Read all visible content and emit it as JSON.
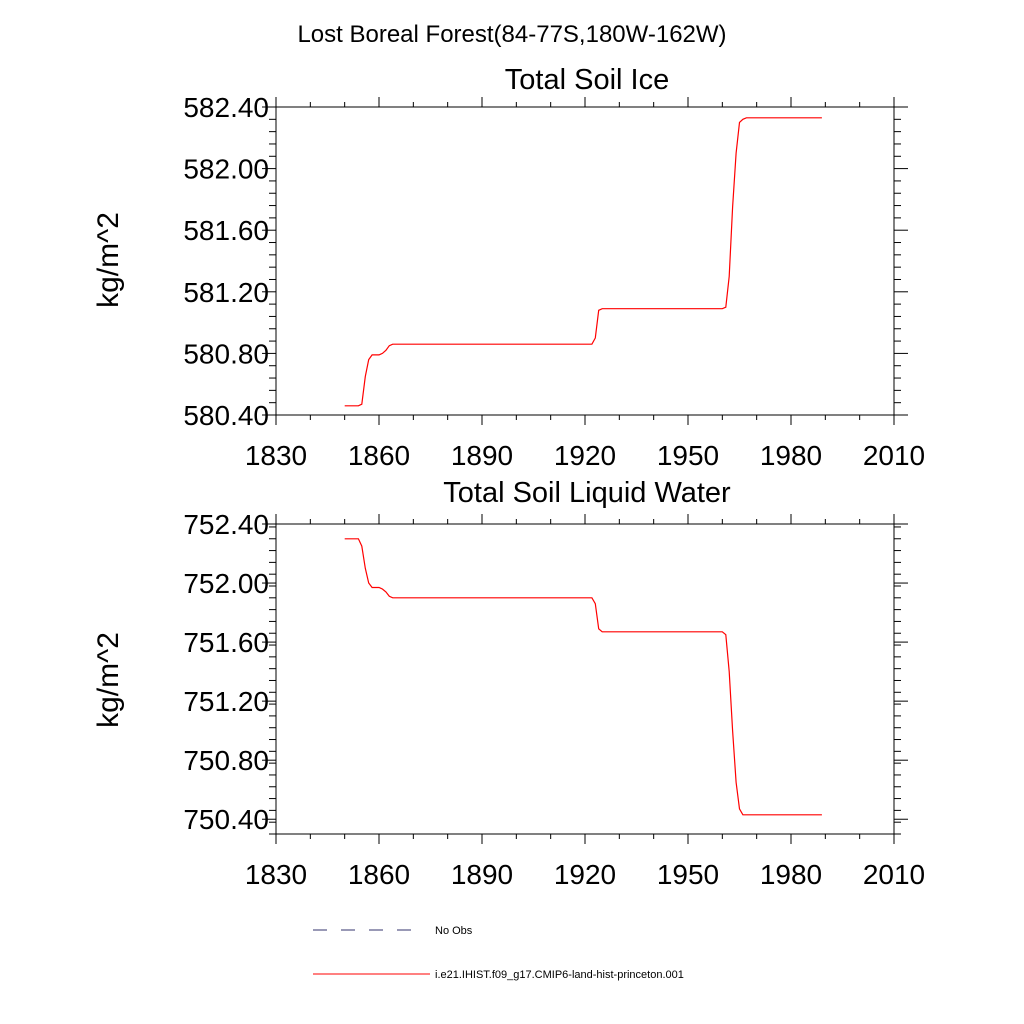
{
  "figure": {
    "title": "Lost Boreal Forest(84-77S,180W-162W)",
    "line_color": "#ff0000",
    "obs_color": "#33336e"
  },
  "legend": [
    {
      "label": "No Obs",
      "style": "dashed",
      "color": "#33336e"
    },
    {
      "label": "i.e21.IHIST.f09_g17.CMIP6-land-hist-princeton.001",
      "style": "solid",
      "color": "#ff0000"
    }
  ],
  "chart_data": [
    {
      "type": "line",
      "title": "Total Soil Ice",
      "xlabel": "",
      "ylabel": "kg/m^2",
      "xlim": [
        1830,
        2010
      ],
      "ylim": [
        580.4,
        582.4
      ],
      "xticks": [
        1830,
        1860,
        1890,
        1920,
        1950,
        1980,
        2010
      ],
      "xtick_labels": [
        "1830",
        "1860",
        "1890",
        "1920",
        "1950",
        "1980",
        "2010"
      ],
      "yticks": [
        580.4,
        580.8,
        581.2,
        581.6,
        582.0,
        582.4
      ],
      "ytick_labels": [
        "580.40",
        "580.80",
        "581.20",
        "581.60",
        "582.00",
        "582.40"
      ],
      "grid": false,
      "series": [
        {
          "name": "i.e21.IHIST.f09_g17.CMIP6-land-hist-princeton.001",
          "x": [
            1850,
            1854,
            1855,
            1856,
            1857,
            1858,
            1860,
            1861,
            1862,
            1863,
            1864,
            1880,
            1900,
            1922,
            1923,
            1924,
            1925,
            1930,
            1960,
            1961,
            1962,
            1963,
            1964,
            1965,
            1966,
            1967,
            1989
          ],
          "y": [
            580.46,
            580.46,
            580.47,
            580.65,
            580.76,
            580.79,
            580.79,
            580.8,
            580.82,
            580.85,
            580.86,
            580.86,
            580.86,
            580.86,
            580.9,
            581.08,
            581.09,
            581.09,
            581.09,
            581.1,
            581.3,
            581.75,
            582.1,
            582.3,
            582.32,
            582.33,
            582.33
          ]
        }
      ]
    },
    {
      "type": "line",
      "title": "Total Soil Liquid Water",
      "xlabel": "",
      "ylabel": "kg/m^2",
      "xlim": [
        1830,
        2010
      ],
      "ylim": [
        750.3,
        752.4
      ],
      "xticks": [
        1830,
        1860,
        1890,
        1920,
        1950,
        1980,
        2010
      ],
      "xtick_labels": [
        "1830",
        "1860",
        "1890",
        "1920",
        "1950",
        "1980",
        "2010"
      ],
      "yticks": [
        750.4,
        750.8,
        751.2,
        751.6,
        752.0,
        752.4
      ],
      "ytick_labels": [
        "750.40",
        "750.80",
        "751.20",
        "751.60",
        "752.00",
        "752.40"
      ],
      "grid": false,
      "series": [
        {
          "name": "i.e21.IHIST.f09_g17.CMIP6-land-hist-princeton.001",
          "x": [
            1850,
            1854,
            1855,
            1856,
            1857,
            1858,
            1860,
            1861,
            1862,
            1863,
            1864,
            1880,
            1900,
            1922,
            1923,
            1924,
            1925,
            1930,
            1960,
            1961,
            1962,
            1963,
            1964,
            1965,
            1966,
            1967,
            1989
          ],
          "y": [
            752.3,
            752.3,
            752.25,
            752.1,
            752.0,
            751.97,
            751.97,
            751.96,
            751.94,
            751.91,
            751.9,
            751.9,
            751.9,
            751.9,
            751.86,
            751.69,
            751.67,
            751.67,
            751.67,
            751.65,
            751.4,
            751.0,
            750.65,
            750.47,
            750.43,
            750.43,
            750.43
          ]
        }
      ]
    }
  ]
}
